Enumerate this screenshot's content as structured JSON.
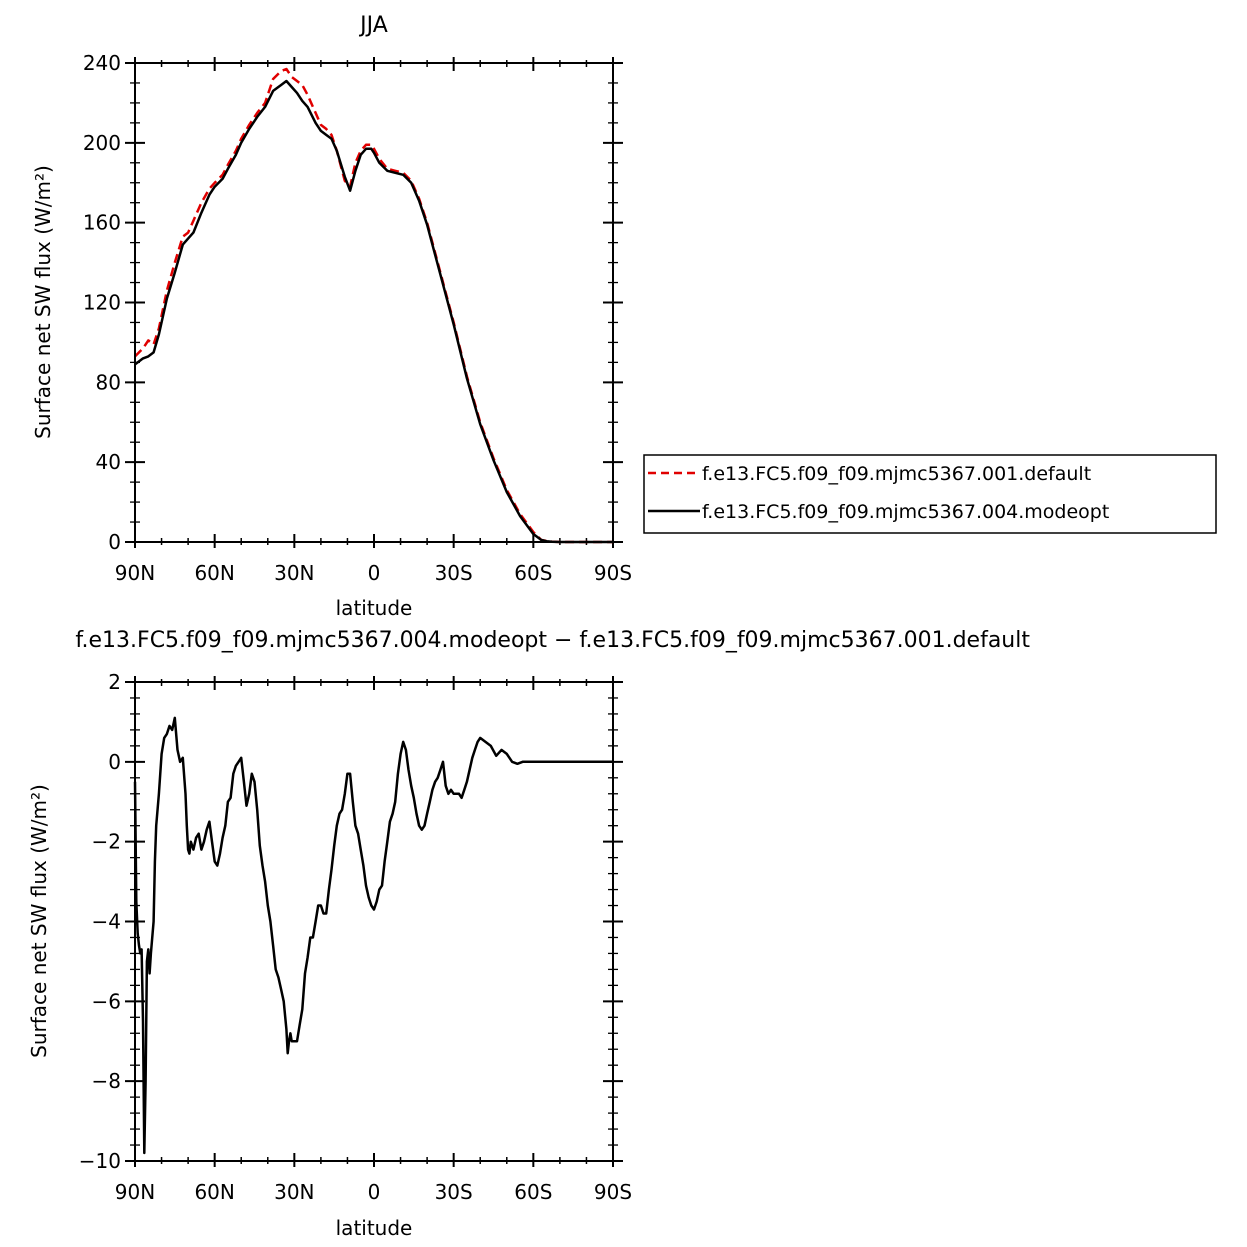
{
  "chart_data": [
    {
      "type": "line",
      "title": "JJA",
      "xlabel": "latitude",
      "ylabel": "Surface net SW flux (W/m²)",
      "xlim": [
        90,
        -90
      ],
      "ylim": [
        0,
        240
      ],
      "x_ticks": [
        {
          "value": 90,
          "label": "90N"
        },
        {
          "value": 60,
          "label": "60N"
        },
        {
          "value": 30,
          "label": "30N"
        },
        {
          "value": 0,
          "label": "0"
        },
        {
          "value": -30,
          "label": "30S"
        },
        {
          "value": -60,
          "label": "60S"
        },
        {
          "value": -90,
          "label": "90S"
        }
      ],
      "y_ticks": [
        0,
        40,
        80,
        120,
        160,
        200,
        240
      ],
      "legend": {
        "placement": "right"
      },
      "series": [
        {
          "name": "f.e13.FC5.f09_f09.mjmc5367.001.default",
          "color": "#e00000",
          "dash": "dashed",
          "x": [
            90,
            87,
            85,
            83,
            81,
            78,
            75,
            72,
            70,
            68,
            65,
            62,
            60,
            57,
            55,
            52,
            50,
            47,
            44,
            41,
            38,
            35,
            33,
            31,
            29,
            27,
            25,
            22,
            20,
            18,
            16,
            14,
            11,
            9,
            7,
            5,
            3,
            1,
            0,
            -2,
            -5,
            -8,
            -11,
            -14,
            -17,
            -20,
            -25,
            -30,
            -35,
            -40,
            -45,
            -50,
            -55,
            -60,
            -63,
            -65,
            -67,
            -70,
            -75,
            -80,
            -90
          ],
          "values": [
            93,
            97,
            101,
            99,
            107,
            126,
            140,
            153,
            155,
            161,
            170,
            177,
            180,
            184,
            189,
            196,
            202,
            209,
            215,
            220,
            232,
            236,
            237,
            233,
            231,
            229,
            224,
            215,
            209,
            207,
            204,
            196,
            181,
            178,
            190,
            196,
            199,
            199,
            197,
            192,
            187,
            186,
            185,
            181,
            172,
            160,
            135,
            110,
            83,
            60,
            42,
            26,
            14,
            5,
            1,
            0.5,
            0.2,
            0,
            0,
            0,
            0
          ]
        },
        {
          "name": "f.e13.FC5.f09_f09.mjmc5367.004.modeopt",
          "color": "#000000",
          "dash": "solid",
          "x": [
            90,
            87,
            85,
            83,
            81,
            78,
            75,
            72,
            70,
            68,
            65,
            62,
            60,
            57,
            55,
            52,
            50,
            47,
            44,
            41,
            38,
            35,
            33,
            31,
            29,
            27,
            25,
            22,
            20,
            18,
            16,
            14,
            11,
            9,
            7,
            5,
            3,
            1,
            0,
            -2,
            -5,
            -8,
            -11,
            -14,
            -17,
            -20,
            -25,
            -30,
            -35,
            -40,
            -45,
            -50,
            -55,
            -60,
            -63,
            -65,
            -67,
            -70,
            -75,
            -80,
            -90
          ],
          "values": [
            89,
            92,
            93,
            95,
            104,
            122,
            135,
            149,
            152,
            155,
            165,
            174,
            178,
            182,
            187,
            194,
            200,
            207,
            213,
            218,
            226,
            229,
            231,
            228,
            225,
            221,
            218,
            210,
            206,
            204,
            202,
            196,
            183,
            176,
            186,
            194,
            197,
            197,
            195,
            190,
            186,
            185,
            184,
            180,
            171,
            159,
            134,
            109,
            82,
            59,
            41,
            25,
            13,
            4,
            1,
            0.4,
            0.1,
            0,
            0,
            0,
            0
          ]
        }
      ]
    },
    {
      "type": "line",
      "title": "f.e13.FC5.f09_f09.mjmc5367.004.modeopt − f.e13.FC5.f09_f09.mjmc5367.001.default",
      "xlabel": "latitude",
      "ylabel": "Surface net SW flux (W/m²)",
      "xlim": [
        90,
        -90
      ],
      "ylim": [
        -10,
        2
      ],
      "x_ticks": [
        {
          "value": 90,
          "label": "90N"
        },
        {
          "value": 60,
          "label": "60N"
        },
        {
          "value": 30,
          "label": "30N"
        },
        {
          "value": 0,
          "label": "0"
        },
        {
          "value": -30,
          "label": "30S"
        },
        {
          "value": -60,
          "label": "60S"
        },
        {
          "value": -90,
          "label": "90S"
        }
      ],
      "y_ticks": [
        {
          "value": 2,
          "label": "2"
        },
        {
          "value": 0,
          "label": "0"
        },
        {
          "value": -2,
          "label": "−2"
        },
        {
          "value": -4,
          "label": "−4"
        },
        {
          "value": -6,
          "label": "−6"
        },
        {
          "value": -8,
          "label": "−8"
        },
        {
          "value": -10,
          "label": "−10"
        }
      ],
      "series": [
        {
          "color": "#000000",
          "dash": "solid",
          "x": [
            90,
            89.5,
            89,
            88.5,
            88,
            87.5,
            87,
            86.5,
            86,
            85.5,
            85,
            84.5,
            84,
            83,
            82.5,
            82,
            81,
            80,
            79,
            78,
            77,
            76,
            75,
            74,
            73,
            72,
            71,
            70.5,
            70,
            69.5,
            69,
            68,
            67,
            66,
            65,
            64,
            63,
            62,
            61,
            60,
            59,
            58,
            57,
            56,
            55,
            54,
            53,
            52,
            51,
            50,
            49,
            48,
            47,
            46,
            45,
            44,
            43,
            42,
            41,
            40,
            39,
            38,
            37,
            36,
            35,
            34,
            33,
            32.5,
            32,
            31.5,
            31,
            30,
            29,
            28,
            27,
            26,
            25,
            24,
            23,
            22,
            21,
            20,
            19,
            18,
            17,
            16,
            15,
            14,
            13,
            12,
            11,
            10,
            9,
            8,
            7,
            6,
            5,
            4,
            3,
            2,
            1,
            0,
            -1,
            -2,
            -3,
            -4,
            -5,
            -6,
            -7,
            -8,
            -9,
            -10,
            -11,
            -12,
            -13,
            -14,
            -15,
            -16,
            -17,
            -18,
            -19,
            -20,
            -21,
            -22,
            -23,
            -24,
            -25,
            -26,
            -27,
            -28,
            -29,
            -30,
            -31,
            -32,
            -33,
            -34,
            -35,
            -36,
            -37,
            -38,
            -39,
            -40,
            -42,
            -44,
            -46,
            -48,
            -50,
            -52,
            -54,
            -56,
            -58,
            -60,
            -62,
            -65,
            -70,
            -75,
            -80,
            -85,
            -90
          ],
          "values": [
            -0.5,
            -3.5,
            -4.3,
            -4.6,
            -4.8,
            -4.7,
            -6.5,
            -9.8,
            -8.0,
            -5.0,
            -4.7,
            -5.3,
            -4.8,
            -4.0,
            -2.5,
            -1.6,
            -0.8,
            0.2,
            0.6,
            0.7,
            0.9,
            0.8,
            1.1,
            0.3,
            0.0,
            0.1,
            -0.8,
            -1.6,
            -2.2,
            -2.3,
            -2.0,
            -2.2,
            -1.9,
            -1.8,
            -2.2,
            -2.0,
            -1.7,
            -1.5,
            -2.0,
            -2.5,
            -2.6,
            -2.3,
            -1.9,
            -1.6,
            -1.0,
            -0.9,
            -0.3,
            -0.1,
            0.0,
            0.1,
            -0.5,
            -1.1,
            -0.8,
            -0.3,
            -0.5,
            -1.2,
            -2.1,
            -2.6,
            -3.0,
            -3.6,
            -4.0,
            -4.6,
            -5.2,
            -5.4,
            -5.7,
            -6.0,
            -6.7,
            -7.3,
            -7.0,
            -6.8,
            -7.0,
            -7.0,
            -7.0,
            -6.6,
            -6.2,
            -5.3,
            -4.9,
            -4.4,
            -4.4,
            -4.0,
            -3.6,
            -3.6,
            -3.8,
            -3.8,
            -3.2,
            -2.7,
            -2.1,
            -1.6,
            -1.3,
            -1.2,
            -0.8,
            -0.3,
            -0.3,
            -1.0,
            -1.6,
            -1.8,
            -2.2,
            -2.6,
            -3.1,
            -3.4,
            -3.6,
            -3.7,
            -3.5,
            -3.2,
            -3.1,
            -2.5,
            -2.0,
            -1.5,
            -1.3,
            -1.0,
            -0.3,
            0.2,
            0.5,
            0.3,
            -0.2,
            -0.6,
            -0.9,
            -1.3,
            -1.6,
            -1.7,
            -1.6,
            -1.3,
            -1.0,
            -0.7,
            -0.5,
            -0.4,
            -0.2,
            0.0,
            -0.6,
            -0.8,
            -0.7,
            -0.8,
            -0.8,
            -0.8,
            -0.9,
            -0.7,
            -0.5,
            -0.2,
            0.1,
            0.3,
            0.5,
            0.6,
            0.5,
            0.4,
            0.15,
            0.3,
            0.2,
            0.0,
            -0.05,
            0.0,
            0.0,
            0.0,
            0.0,
            0.0,
            0.0,
            0.0,
            0.0,
            0.0,
            0.0
          ]
        }
      ]
    }
  ]
}
